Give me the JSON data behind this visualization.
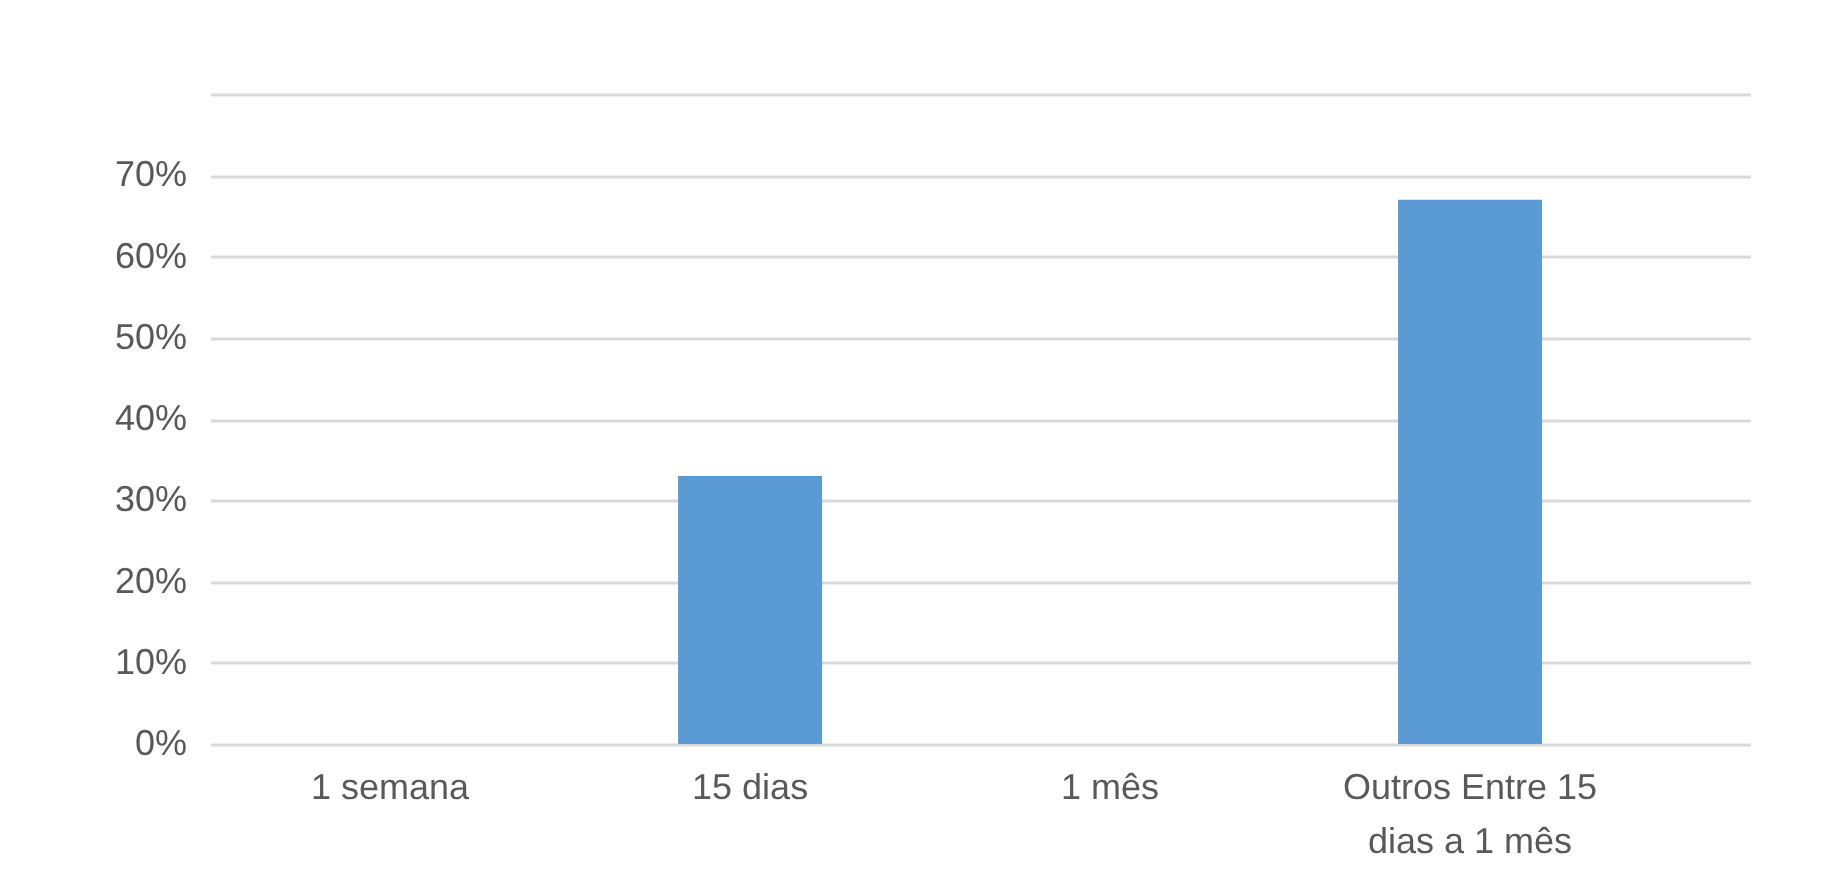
{
  "chart_data": {
    "type": "bar",
    "categories": [
      "1 semana",
      "15 dias",
      "1 mês",
      "Outros Entre 15 dias a 1 mês"
    ],
    "values": [
      0,
      33,
      0,
      67
    ],
    "color": "#5b9bd5",
    "ylim": [
      0,
      80
    ],
    "yticks": [
      {
        "value": 0,
        "label": "0%"
      },
      {
        "value": 10,
        "label": "10%"
      },
      {
        "value": 20,
        "label": "20%"
      },
      {
        "value": 30,
        "label": "30%"
      },
      {
        "value": 40,
        "label": "40%"
      },
      {
        "value": 50,
        "label": "50%"
      },
      {
        "value": 60,
        "label": "60%"
      },
      {
        "value": 70,
        "label": "70%"
      },
      {
        "value": 80,
        "label": null
      }
    ],
    "grid": "y"
  }
}
